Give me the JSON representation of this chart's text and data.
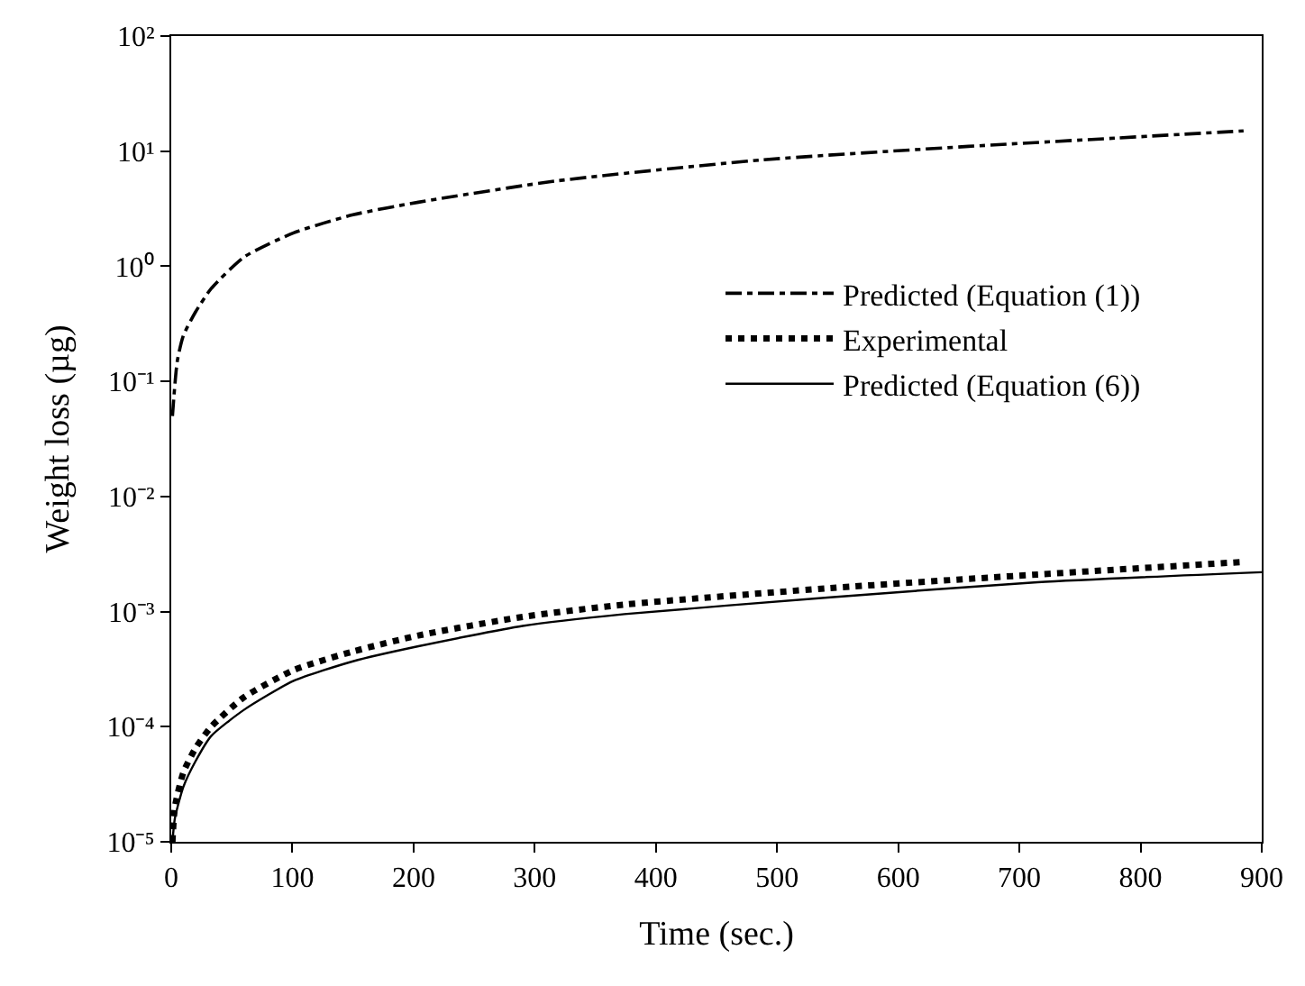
{
  "chart_data": {
    "type": "line",
    "xlabel": "Time (sec.)",
    "ylabel": "Weight loss (µg)",
    "log": "y",
    "xlim": [
      0,
      900
    ],
    "xticks": [
      0,
      100,
      200,
      300,
      400,
      500,
      600,
      700,
      800,
      900
    ],
    "ylim": [
      1e-05,
      100
    ],
    "yticks": [
      {
        "value": 1e-05,
        "label": "10⁻⁵"
      },
      {
        "value": 0.0001,
        "label": "10⁻⁴"
      },
      {
        "value": 0.001,
        "label": "10⁻³"
      },
      {
        "value": 0.01,
        "label": "10⁻²"
      },
      {
        "value": 0.1,
        "label": "10⁻¹"
      },
      {
        "value": 1,
        "label": "10⁰"
      },
      {
        "value": 10,
        "label": "10¹"
      },
      {
        "value": 100,
        "label": "10²"
      }
    ],
    "legend": "right",
    "marker": "none",
    "series": [
      {
        "name": "Predicted (Equation (1))",
        "color": "#000000",
        "line_style": "dashdot",
        "x": [
          1,
          5,
          10,
          20,
          33,
          60,
          101,
          150,
          204,
          317,
          488,
          658,
          780,
          885
        ],
        "values": [
          0.05,
          0.15,
          0.25,
          0.4,
          0.64,
          1.2,
          1.95,
          2.8,
          3.6,
          5.5,
          8.4,
          11,
          13,
          15
        ]
      },
      {
        "name": "Experimental",
        "color": "#000000",
        "line_style": "dotted",
        "x": [
          1,
          3,
          10,
          20,
          33,
          60,
          101,
          150,
          204,
          290,
          374,
          544,
          715,
          885
        ],
        "values": [
          1e-05,
          2e-05,
          4e-05,
          6.5e-05,
          0.0001,
          0.00018,
          0.00031,
          0.00045,
          0.00062,
          0.0009,
          0.00115,
          0.0016,
          0.0021,
          0.0027
        ]
      },
      {
        "name": "Predicted (Equation (6))",
        "color": "#000000",
        "line_style": "solid",
        "x": [
          1,
          3,
          10,
          20,
          33,
          60,
          101,
          150,
          204,
          290,
          374,
          544,
          715,
          900
        ],
        "values": [
          1e-05,
          1.6e-05,
          3e-05,
          5e-05,
          8.3e-05,
          0.00014,
          0.00025,
          0.00037,
          0.0005,
          0.00075,
          0.00095,
          0.00133,
          0.0018,
          0.0022
        ]
      }
    ]
  }
}
